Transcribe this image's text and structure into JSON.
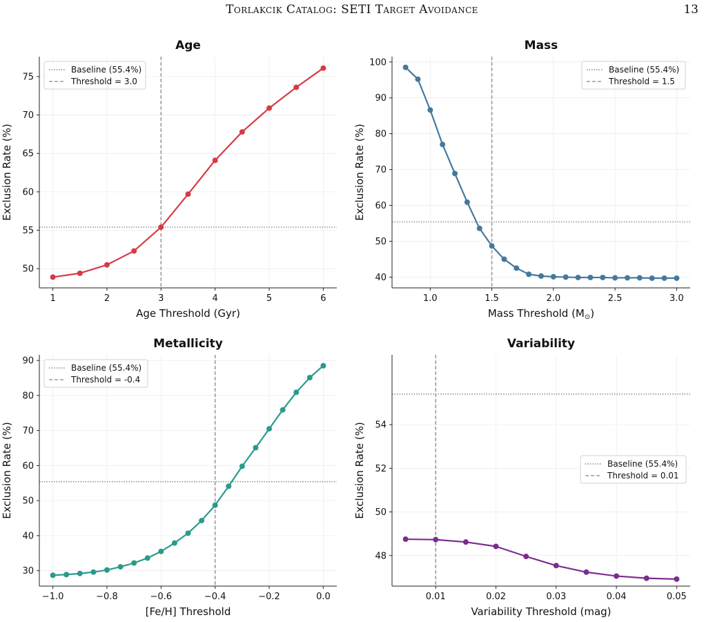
{
  "page": {
    "running_title": "Torlakcik Catalog: SETI Target Avoidance",
    "page_number": "13"
  },
  "chart_data": [
    {
      "type": "line",
      "title": "Age",
      "xlabel": "Age Threshold (Gyr)",
      "ylabel": "Exclusion Rate (%)",
      "xlim": [
        0.75,
        6.25
      ],
      "ylim": [
        47.5,
        77.6
      ],
      "xticks": [
        1,
        2,
        3,
        4,
        5,
        6
      ],
      "xtick_labels": [
        "1",
        "2",
        "3",
        "4",
        "5",
        "6"
      ],
      "yticks": [
        50,
        55,
        60,
        65,
        70,
        75
      ],
      "ytick_labels": [
        "50",
        "55",
        "60",
        "65",
        "70",
        "75"
      ],
      "grid": true,
      "legend_position": "top-left",
      "color": "#d63a45",
      "series": [
        {
          "x": [
            1.0,
            1.5,
            2.0,
            2.5,
            3.0,
            3.5,
            4.0,
            4.5,
            5.0,
            5.5,
            6.0
          ],
          "y": [
            48.9,
            49.4,
            50.5,
            52.3,
            55.4,
            59.7,
            64.1,
            67.8,
            70.9,
            73.6,
            76.1
          ]
        }
      ],
      "baseline": {
        "value": 55.4,
        "label": "Baseline (55.4%)"
      },
      "threshold": {
        "value": 3.0,
        "label": "Threshold = 3.0"
      }
    },
    {
      "type": "line",
      "title": "Mass",
      "xlabel": "Mass Threshold (M",
      "xlabel_symbol": "⊙",
      "xlabel_close": ")",
      "ylabel": "Exclusion Rate (%)",
      "xlim": [
        0.69,
        3.11
      ],
      "ylim": [
        37.0,
        101.5
      ],
      "xticks": [
        1.0,
        1.5,
        2.0,
        2.5,
        3.0
      ],
      "xtick_labels": [
        "1.0",
        "1.5",
        "2.0",
        "2.5",
        "3.0"
      ],
      "yticks": [
        40,
        50,
        60,
        70,
        80,
        90,
        100
      ],
      "ytick_labels": [
        "40",
        "50",
        "60",
        "70",
        "80",
        "90",
        "100"
      ],
      "grid": true,
      "legend_position": "top-right",
      "color": "#44799d",
      "series": [
        {
          "x": [
            0.8,
            0.9,
            1.0,
            1.1,
            1.2,
            1.3,
            1.4,
            1.5,
            1.6,
            1.7,
            1.8,
            1.9,
            2.0,
            2.1,
            2.2,
            2.3,
            2.4,
            2.5,
            2.6,
            2.7,
            2.8,
            2.9,
            3.0
          ],
          "y": [
            98.5,
            95.2,
            86.6,
            77.0,
            68.9,
            60.9,
            53.6,
            48.7,
            45.0,
            42.5,
            40.8,
            40.3,
            40.1,
            40.0,
            39.9,
            39.9,
            39.9,
            39.8,
            39.8,
            39.8,
            39.7,
            39.7,
            39.7
          ]
        }
      ],
      "baseline": {
        "value": 55.4,
        "label": "Baseline (55.4%)"
      },
      "threshold": {
        "value": 1.5,
        "label": "Threshold = 1.5"
      }
    },
    {
      "type": "line",
      "title": "Metallicity",
      "xlabel": "[Fe/H] Threshold",
      "ylabel": "Exclusion Rate (%)",
      "xlim": [
        -1.05,
        0.05
      ],
      "ylim": [
        25.6,
        91.6
      ],
      "xticks": [
        -1.0,
        -0.8,
        -0.6,
        -0.4,
        -0.2,
        0.0
      ],
      "xtick_labels": [
        "−1.0",
        "−0.8",
        "−0.6",
        "−0.4",
        "−0.2",
        "0.0"
      ],
      "yticks": [
        30,
        40,
        50,
        60,
        70,
        80,
        90
      ],
      "ytick_labels": [
        "30",
        "40",
        "50",
        "60",
        "70",
        "80",
        "90"
      ],
      "grid": true,
      "legend_position": "top-left",
      "color": "#2a9a8c",
      "series": [
        {
          "x": [
            -1.0,
            -0.95,
            -0.9,
            -0.85,
            -0.8,
            -0.75,
            -0.7,
            -0.65,
            -0.6,
            -0.55,
            -0.5,
            -0.45,
            -0.4,
            -0.35,
            -0.3,
            -0.25,
            -0.2,
            -0.15,
            -0.1,
            -0.05,
            0.0
          ],
          "y": [
            28.7,
            28.9,
            29.2,
            29.6,
            30.2,
            31.1,
            32.2,
            33.6,
            35.5,
            37.9,
            40.7,
            44.3,
            48.7,
            54.1,
            59.8,
            65.1,
            70.5,
            75.9,
            80.9,
            85.1,
            88.5
          ]
        }
      ],
      "baseline": {
        "value": 55.4,
        "label": "Baseline (55.4%)"
      },
      "threshold": {
        "value": -0.4,
        "label": "Threshold = -0.4"
      }
    },
    {
      "type": "line",
      "title": "Variability",
      "xlabel": "Variability Threshold (mag)",
      "ylabel": "Exclusion Rate (%)",
      "xlim": [
        0.00275,
        0.05225
      ],
      "ylim": [
        46.6,
        57.2
      ],
      "xticks": [
        0.01,
        0.02,
        0.03,
        0.04,
        0.05
      ],
      "xtick_labels": [
        "0.01",
        "0.02",
        "0.03",
        "0.04",
        "0.05"
      ],
      "yticks": [
        48,
        50,
        52,
        54
      ],
      "ytick_labels": [
        "48",
        "50",
        "52",
        "54"
      ],
      "grid": true,
      "legend_position": "center-right",
      "color": "#7b2d8e",
      "series": [
        {
          "x": [
            0.005,
            0.01,
            0.015,
            0.02,
            0.025,
            0.03,
            0.035,
            0.04,
            0.045,
            0.05
          ],
          "y": [
            48.75,
            48.73,
            48.62,
            48.42,
            47.96,
            47.54,
            47.24,
            47.06,
            46.96,
            46.92
          ]
        }
      ],
      "baseline": {
        "value": 55.4,
        "label": "Baseline (55.4%)"
      },
      "threshold": {
        "value": 0.01,
        "label": "Threshold = 0.01"
      }
    }
  ]
}
